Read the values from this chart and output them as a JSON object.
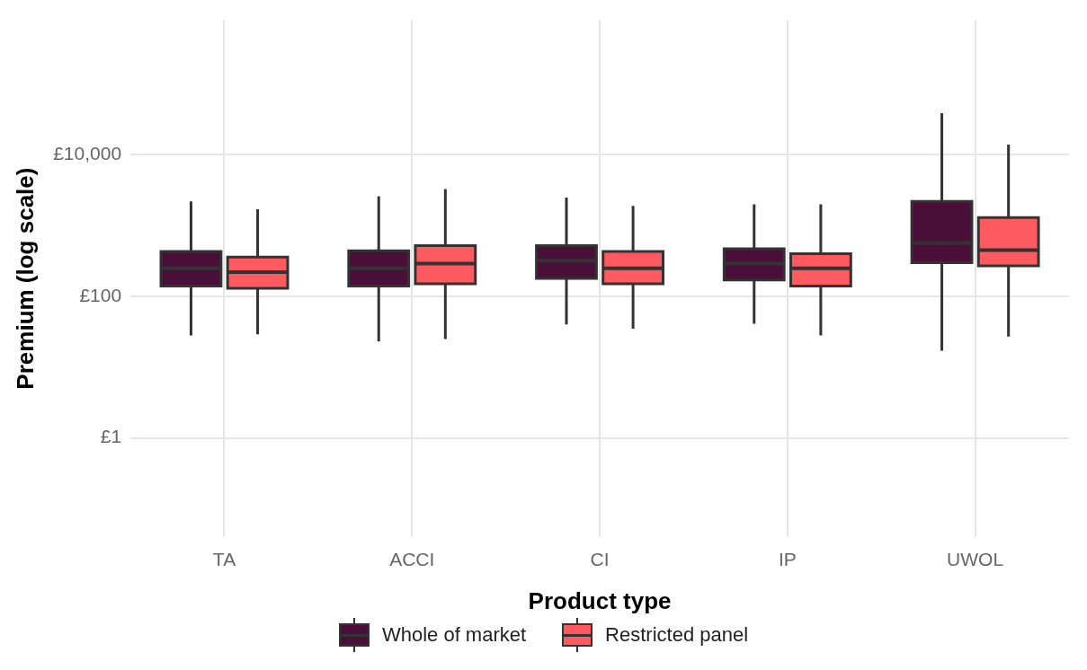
{
  "chart_data": {
    "type": "box",
    "xlabel": "Product type",
    "ylabel": "Premium (log scale)",
    "categories": [
      "TA",
      "ACCI",
      "CI",
      "IP",
      "UWOL"
    ],
    "log": "y",
    "ylim": [
      0.04,
      800000
    ],
    "yticks": [
      {
        "value": 1,
        "label": "£1"
      },
      {
        "value": 100,
        "label": "£100"
      },
      {
        "value": 10000,
        "label": "£10,000"
      }
    ],
    "grid": true,
    "legend": "bottom",
    "series": [
      {
        "name": "Whole of market",
        "color": "#4a0f39",
        "boxes": [
          {
            "low": 28,
            "q1": 140,
            "median": 250,
            "q3": 430,
            "high": 2200
          },
          {
            "low": 23,
            "q1": 140,
            "median": 250,
            "q3": 440,
            "high": 2600
          },
          {
            "low": 40,
            "q1": 180,
            "median": 320,
            "q3": 520,
            "high": 2500
          },
          {
            "low": 41,
            "q1": 170,
            "median": 290,
            "q3": 470,
            "high": 2000
          },
          {
            "low": 17,
            "q1": 300,
            "median": 570,
            "q3": 2200,
            "high": 39000
          }
        ]
      },
      {
        "name": "Restricted panel",
        "color": "#fe5a5f",
        "boxes": [
          {
            "low": 29,
            "q1": 130,
            "median": 220,
            "q3": 360,
            "high": 1700
          },
          {
            "low": 25,
            "q1": 150,
            "median": 290,
            "q3": 520,
            "high": 3300
          },
          {
            "low": 35,
            "q1": 150,
            "median": 250,
            "q3": 430,
            "high": 1900
          },
          {
            "low": 28,
            "q1": 140,
            "median": 250,
            "q3": 400,
            "high": 2000
          },
          {
            "low": 27,
            "q1": 270,
            "median": 450,
            "q3": 1300,
            "high": 14000
          }
        ]
      }
    ]
  }
}
